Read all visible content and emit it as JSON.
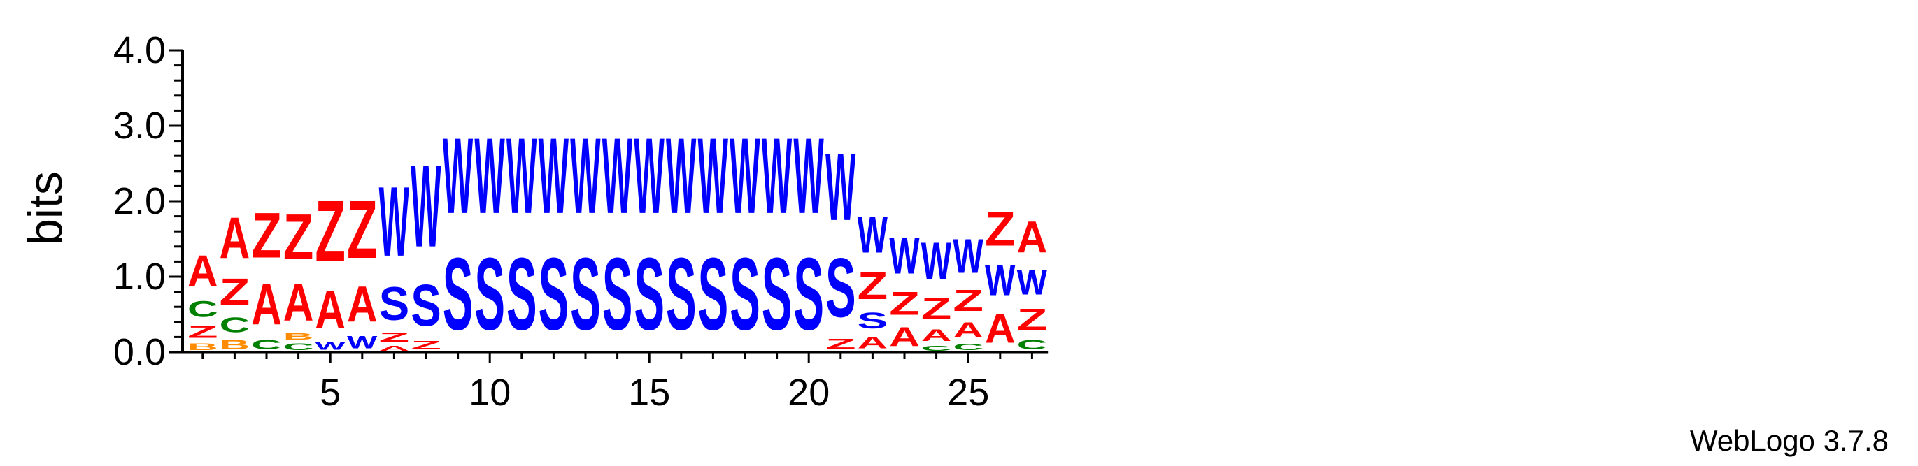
{
  "chart_data": {
    "type": "sequence-logo",
    "ylabel": "bits",
    "ylim": [
      0,
      4.0
    ],
    "y_ticks": [
      "0.0",
      "1.0",
      "2.0",
      "3.0",
      "4.0"
    ],
    "x_ticks": [
      "5",
      "10",
      "15",
      "20",
      "25"
    ],
    "x_tick_positions": [
      5,
      10,
      15,
      20,
      25
    ],
    "num_positions": 27,
    "colors": {
      "A": "#ff0000",
      "Z": "#ff0000",
      "W": "#0000ff",
      "S": "#0000ff",
      "C": "#008000",
      "B": "#ff8c00",
      "other": "#ff8c00"
    },
    "columns": [
      {
        "position": 1,
        "stack": [
          {
            "letter": "B",
            "bits": 0.14
          },
          {
            "letter": "Z",
            "bits": 0.26
          },
          {
            "letter": "C",
            "bits": 0.34
          },
          {
            "letter": "A",
            "bits": 0.66
          }
        ]
      },
      {
        "position": 2,
        "stack": [
          {
            "letter": "B",
            "bits": 0.2
          },
          {
            "letter": "C",
            "bits": 0.32
          },
          {
            "letter": "Z",
            "bits": 0.56
          },
          {
            "letter": "A",
            "bits": 0.87
          }
        ]
      },
      {
        "position": 3,
        "stack": [
          {
            "letter": "C",
            "bits": 0.2
          },
          {
            "letter": "A",
            "bits": 0.87
          },
          {
            "letter": "Z",
            "bits": 0.95
          }
        ]
      },
      {
        "position": 4,
        "stack": [
          {
            "letter": "C",
            "bits": 0.14
          },
          {
            "letter": "B",
            "bits": 0.13
          },
          {
            "letter": "A",
            "bits": 0.78
          },
          {
            "letter": "Z",
            "bits": 0.95
          }
        ]
      },
      {
        "position": 5,
        "stack": [
          {
            "letter": "W",
            "bits": 0.16
          },
          {
            "letter": "A",
            "bits": 0.8
          },
          {
            "letter": "Z",
            "bits": 1.28
          }
        ]
      },
      {
        "position": 6,
        "stack": [
          {
            "letter": "W",
            "bits": 0.26
          },
          {
            "letter": "A",
            "bits": 0.75
          },
          {
            "letter": "Z",
            "bits": 1.23
          }
        ]
      },
      {
        "position": 7,
        "stack": [
          {
            "letter": "A",
            "bits": 0.1
          },
          {
            "letter": "Z",
            "bits": 0.19
          },
          {
            "letter": "S",
            "bits": 0.7
          },
          {
            "letter": "W",
            "bits": 1.47
          }
        ]
      },
      {
        "position": 8,
        "stack": [
          {
            "letter": "Z",
            "bits": 0.18
          },
          {
            "letter": "S",
            "bits": 0.88
          },
          {
            "letter": "W",
            "bits": 1.74
          }
        ]
      },
      {
        "position": 9,
        "stack": [
          {
            "letter": "S",
            "bits": 1.53
          },
          {
            "letter": "W",
            "bits": 1.6
          }
        ]
      },
      {
        "position": 10,
        "stack": [
          {
            "letter": "S",
            "bits": 1.53
          },
          {
            "letter": "W",
            "bits": 1.6
          }
        ]
      },
      {
        "position": 11,
        "stack": [
          {
            "letter": "S",
            "bits": 1.53
          },
          {
            "letter": "W",
            "bits": 1.6
          }
        ]
      },
      {
        "position": 12,
        "stack": [
          {
            "letter": "S",
            "bits": 1.53
          },
          {
            "letter": "W",
            "bits": 1.6
          }
        ]
      },
      {
        "position": 13,
        "stack": [
          {
            "letter": "S",
            "bits": 1.53
          },
          {
            "letter": "W",
            "bits": 1.6
          }
        ]
      },
      {
        "position": 14,
        "stack": [
          {
            "letter": "S",
            "bits": 1.53
          },
          {
            "letter": "W",
            "bits": 1.6
          }
        ]
      },
      {
        "position": 15,
        "stack": [
          {
            "letter": "S",
            "bits": 1.53
          },
          {
            "letter": "W",
            "bits": 1.6
          }
        ]
      },
      {
        "position": 16,
        "stack": [
          {
            "letter": "S",
            "bits": 1.53
          },
          {
            "letter": "W",
            "bits": 1.6
          }
        ]
      },
      {
        "position": 17,
        "stack": [
          {
            "letter": "S",
            "bits": 1.53
          },
          {
            "letter": "W",
            "bits": 1.6
          }
        ]
      },
      {
        "position": 18,
        "stack": [
          {
            "letter": "S",
            "bits": 1.53
          },
          {
            "letter": "W",
            "bits": 1.6
          }
        ]
      },
      {
        "position": 19,
        "stack": [
          {
            "letter": "S",
            "bits": 1.53
          },
          {
            "letter": "W",
            "bits": 1.6
          }
        ]
      },
      {
        "position": 20,
        "stack": [
          {
            "letter": "S",
            "bits": 1.53
          },
          {
            "letter": "W",
            "bits": 1.6
          }
        ]
      },
      {
        "position": 21,
        "stack": [
          {
            "letter": "Z",
            "bits": 0.22
          },
          {
            "letter": "S",
            "bits": 1.25
          },
          {
            "letter": "W",
            "bits": 1.43
          }
        ]
      },
      {
        "position": 22,
        "stack": [
          {
            "letter": "A",
            "bits": 0.25
          },
          {
            "letter": "S",
            "bits": 0.34
          },
          {
            "letter": "Z",
            "bits": 0.58
          },
          {
            "letter": "W",
            "bits": 0.77
          }
        ]
      },
      {
        "position": 23,
        "stack": [
          {
            "letter": "A",
            "bits": 0.4
          },
          {
            "letter": "Z",
            "bits": 0.49
          },
          {
            "letter": "W",
            "bits": 0.77
          }
        ]
      },
      {
        "position": 24,
        "stack": [
          {
            "letter": "C",
            "bits": 0.1
          },
          {
            "letter": "A",
            "bits": 0.25
          },
          {
            "letter": "Z",
            "bits": 0.46
          },
          {
            "letter": "W",
            "bits": 0.79
          }
        ]
      },
      {
        "position": 25,
        "stack": [
          {
            "letter": "C",
            "bits": 0.13
          },
          {
            "letter": "A",
            "bits": 0.33
          },
          {
            "letter": "Z",
            "bits": 0.45
          },
          {
            "letter": "W",
            "bits": 0.72
          }
        ]
      },
      {
        "position": 26,
        "stack": [
          {
            "letter": "A",
            "bits": 0.63
          },
          {
            "letter": "W",
            "bits": 0.64
          },
          {
            "letter": "Z",
            "bits": 0.72
          }
        ]
      },
      {
        "position": 27,
        "stack": [
          {
            "letter": "C",
            "bits": 0.2
          },
          {
            "letter": "Z",
            "bits": 0.46
          },
          {
            "letter": "W",
            "bits": 0.53
          },
          {
            "letter": "A",
            "bits": 0.66
          }
        ]
      }
    ]
  },
  "footer": {
    "credit": "WebLogo 3.7.8"
  }
}
